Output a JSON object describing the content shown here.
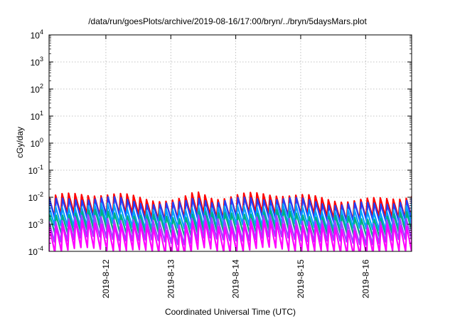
{
  "chart_data": {
    "type": "line",
    "title": "/data/run/goesPlots/archive/2019-08-16/17:00/bryn/../bryn/5daysMars.plot",
    "xlabel": "Coordinated Universal Time (UTC)",
    "ylabel": "cGy/day",
    "y_scale": "log",
    "ylim_exponents": [
      -4,
      4
    ],
    "y_tick_labels": [
      {
        "base": "10",
        "exp": "-4"
      },
      {
        "base": "10",
        "exp": "-3"
      },
      {
        "base": "10",
        "exp": "-2"
      },
      {
        "base": "10",
        "exp": "-1"
      },
      {
        "base": "10",
        "exp": "0"
      },
      {
        "base": "10",
        "exp": "1"
      },
      {
        "base": "10",
        "exp": "2"
      },
      {
        "base": "10",
        "exp": "3"
      },
      {
        "base": "10",
        "exp": "4"
      }
    ],
    "x_range_days": [
      "2019-08-11T03:00",
      "2019-08-16T17:00"
    ],
    "x_ticks": [
      "2019-8-12",
      "2019-8-13",
      "2019-8-14",
      "2019-8-15",
      "2019-8-16"
    ],
    "grid": true,
    "sawtooth_period_hours": 2.4,
    "series": [
      {
        "color": "#ff0000",
        "peak_log10": -2.0,
        "trough_log10": -2.7
      },
      {
        "color": "#2040ff",
        "peak_log10": -2.15,
        "trough_log10": -2.85
      },
      {
        "color": "#00a0ff",
        "peak_log10": -2.4,
        "trough_log10": -3.1
      },
      {
        "color": "#00b080",
        "peak_log10": -2.65,
        "trough_log10": -3.35
      },
      {
        "color": "#a040ff",
        "peak_log10": -2.85,
        "trough_log10": -3.6
      },
      {
        "color": "#ff00ff",
        "peak_log10": -3.05,
        "trough_log10": -4.0
      }
    ],
    "features": [
      {
        "label": "bump",
        "at": "2019-08-13T10:00",
        "delta_log10": 0.25
      }
    ]
  }
}
